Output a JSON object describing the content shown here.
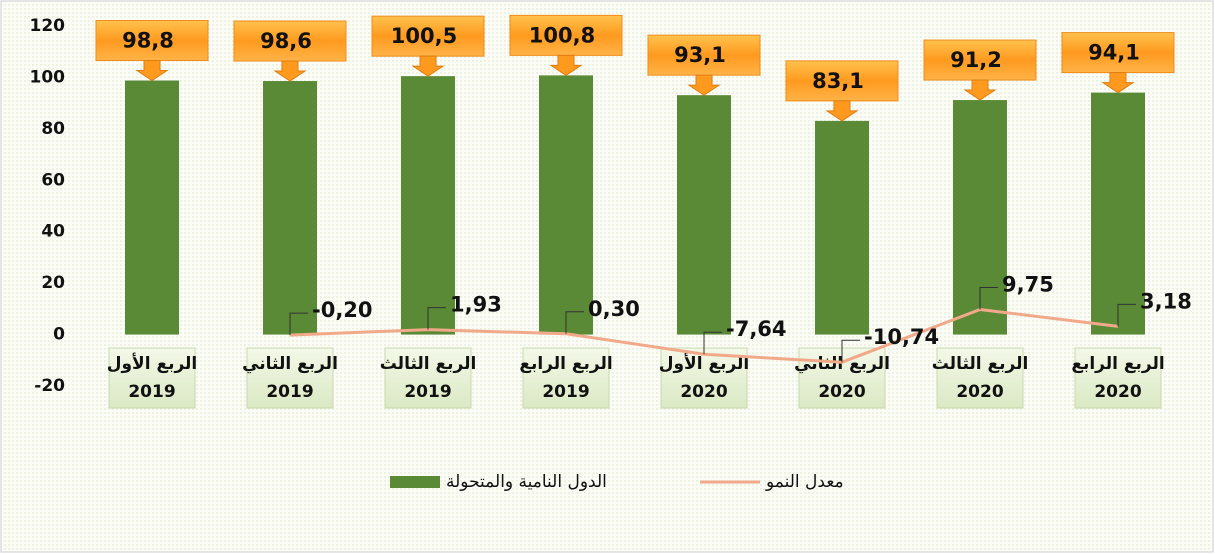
{
  "chart_data": {
    "type": "bar",
    "categories": [
      [
        "الربع الأول",
        "2019"
      ],
      [
        "الربع الثاني",
        "2019"
      ],
      [
        "الربع الثالث",
        "2019"
      ],
      [
        "الربع الرابع",
        "2019"
      ],
      [
        "الربع الأول",
        "2020"
      ],
      [
        "الربع الثاني",
        "2020"
      ],
      [
        "الربع الثالث",
        "2020"
      ],
      [
        "الربع الرابع",
        "2020"
      ]
    ],
    "series": [
      {
        "name": "الدول النامية والمتحولة",
        "color": "#5a8a35",
        "values": [
          98.8,
          98.6,
          100.5,
          100.8,
          93.1,
          83.1,
          91.2,
          94.1
        ],
        "value_labels": [
          "98,8",
          "98,6",
          "100,5",
          "100,8",
          "93,1",
          "83,1",
          "91,2",
          "94,1"
        ]
      },
      {
        "name": "معدل النمو",
        "color": "#f2a98a",
        "type": "line",
        "values": [
          null,
          -0.2,
          1.93,
          0.3,
          -7.64,
          -10.74,
          9.75,
          3.18
        ],
        "value_labels": [
          null,
          "-0,20",
          "1,93",
          "0,30",
          "-7,64",
          "-10,74",
          "9,75",
          "3,18"
        ]
      }
    ],
    "ylim": [
      -20,
      120
    ],
    "yticks": [
      120,
      100,
      80,
      60,
      40,
      20,
      0,
      -20
    ]
  }
}
